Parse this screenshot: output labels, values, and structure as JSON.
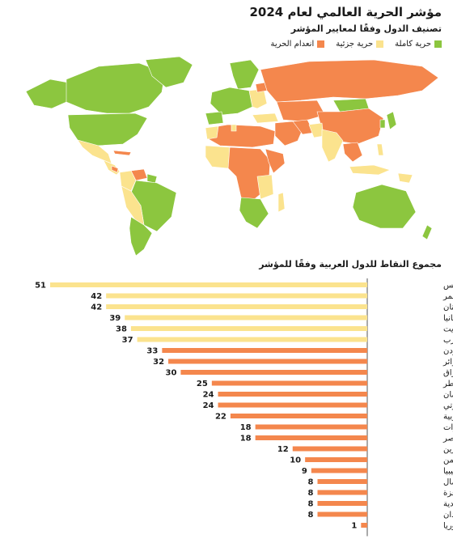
{
  "header": {
    "title": "مؤشر الحرية العالمي لعام 2024",
    "subtitle": "تصنيف الدول وفقًا لمعايير المؤشر"
  },
  "legend": [
    {
      "label": "حرية كاملة",
      "color": "#8cc63f"
    },
    {
      "label": "حرية جزئية",
      "color": "#fbe38e"
    },
    {
      "label": "انعدام الحرية",
      "color": "#f4874d"
    }
  ],
  "colors": {
    "free": "#8cc63f",
    "partly": "#fbe38e",
    "notfree": "#f4874d",
    "axis": "#555555",
    "grid": "#dddddd"
  },
  "chart_data": {
    "type": "bar",
    "orientation": "horizontal",
    "title": "مجموع النقاط للدول العربية وفقًا للمؤشر",
    "categories": [
      "تونس",
      "جزر القمر",
      "لبنان",
      "موريتانيا",
      "الكويت",
      "المغرب",
      "الأردن",
      "الجزائر",
      "العراق",
      "قطر",
      "سلطنة عُمان",
      "جيبوتي",
      "الضفة الغربية",
      "الإمارات",
      "مصر",
      "البحرين",
      "اليمن",
      "ليبيا",
      "الصومال",
      "قطاع غزة",
      "السعودية",
      "السودان",
      "سوريا"
    ],
    "values": [
      51,
      42,
      42,
      39,
      38,
      37,
      33,
      32,
      30,
      25,
      24,
      24,
      22,
      18,
      18,
      12,
      10,
      9,
      8,
      8,
      8,
      8,
      1
    ],
    "status": [
      "partly",
      "partly",
      "partly",
      "partly",
      "partly",
      "partly",
      "notfree",
      "notfree",
      "notfree",
      "notfree",
      "notfree",
      "notfree",
      "notfree",
      "notfree",
      "notfree",
      "notfree",
      "notfree",
      "notfree",
      "notfree",
      "notfree",
      "notfree",
      "notfree",
      "notfree"
    ],
    "xlim": [
      0,
      55
    ],
    "grid": false
  }
}
